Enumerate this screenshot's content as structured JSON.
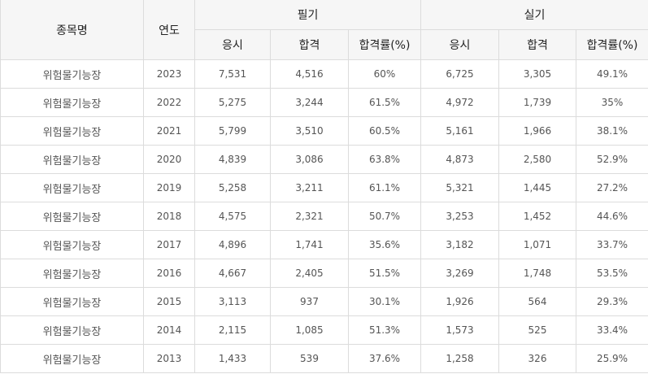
{
  "table": {
    "headers": {
      "name": "종목명",
      "year": "연도",
      "written": "필기",
      "practical": "실기",
      "sub": [
        "응시",
        "합격",
        "합격률(%)",
        "응시",
        "합격",
        "합격률(%)"
      ]
    },
    "rows": [
      [
        "위험물기능장",
        "2023",
        "7,531",
        "4,516",
        "60%",
        "6,725",
        "3,305",
        "49.1%"
      ],
      [
        "위험물기능장",
        "2022",
        "5,275",
        "3,244",
        "61.5%",
        "4,972",
        "1,739",
        "35%"
      ],
      [
        "위험물기능장",
        "2021",
        "5,799",
        "3,510",
        "60.5%",
        "5,161",
        "1,966",
        "38.1%"
      ],
      [
        "위험물기능장",
        "2020",
        "4,839",
        "3,086",
        "63.8%",
        "4,873",
        "2,580",
        "52.9%"
      ],
      [
        "위험물기능장",
        "2019",
        "5,258",
        "3,211",
        "61.1%",
        "5,321",
        "1,445",
        "27.2%"
      ],
      [
        "위험물기능장",
        "2018",
        "4,575",
        "2,321",
        "50.7%",
        "3,253",
        "1,452",
        "44.6%"
      ],
      [
        "위험물기능장",
        "2017",
        "4,896",
        "1,741",
        "35.6%",
        "3,182",
        "1,071",
        "33.7%"
      ],
      [
        "위험물기능장",
        "2016",
        "4,667",
        "2,405",
        "51.5%",
        "3,269",
        "1,748",
        "53.5%"
      ],
      [
        "위험물기능장",
        "2015",
        "3,113",
        "937",
        "30.1%",
        "1,926",
        "564",
        "29.3%"
      ],
      [
        "위험물기능장",
        "2014",
        "2,115",
        "1,085",
        "51.3%",
        "1,573",
        "525",
        "33.4%"
      ],
      [
        "위험물기능장",
        "2013",
        "1,433",
        "539",
        "37.6%",
        "1,258",
        "326",
        "25.9%"
      ]
    ]
  }
}
